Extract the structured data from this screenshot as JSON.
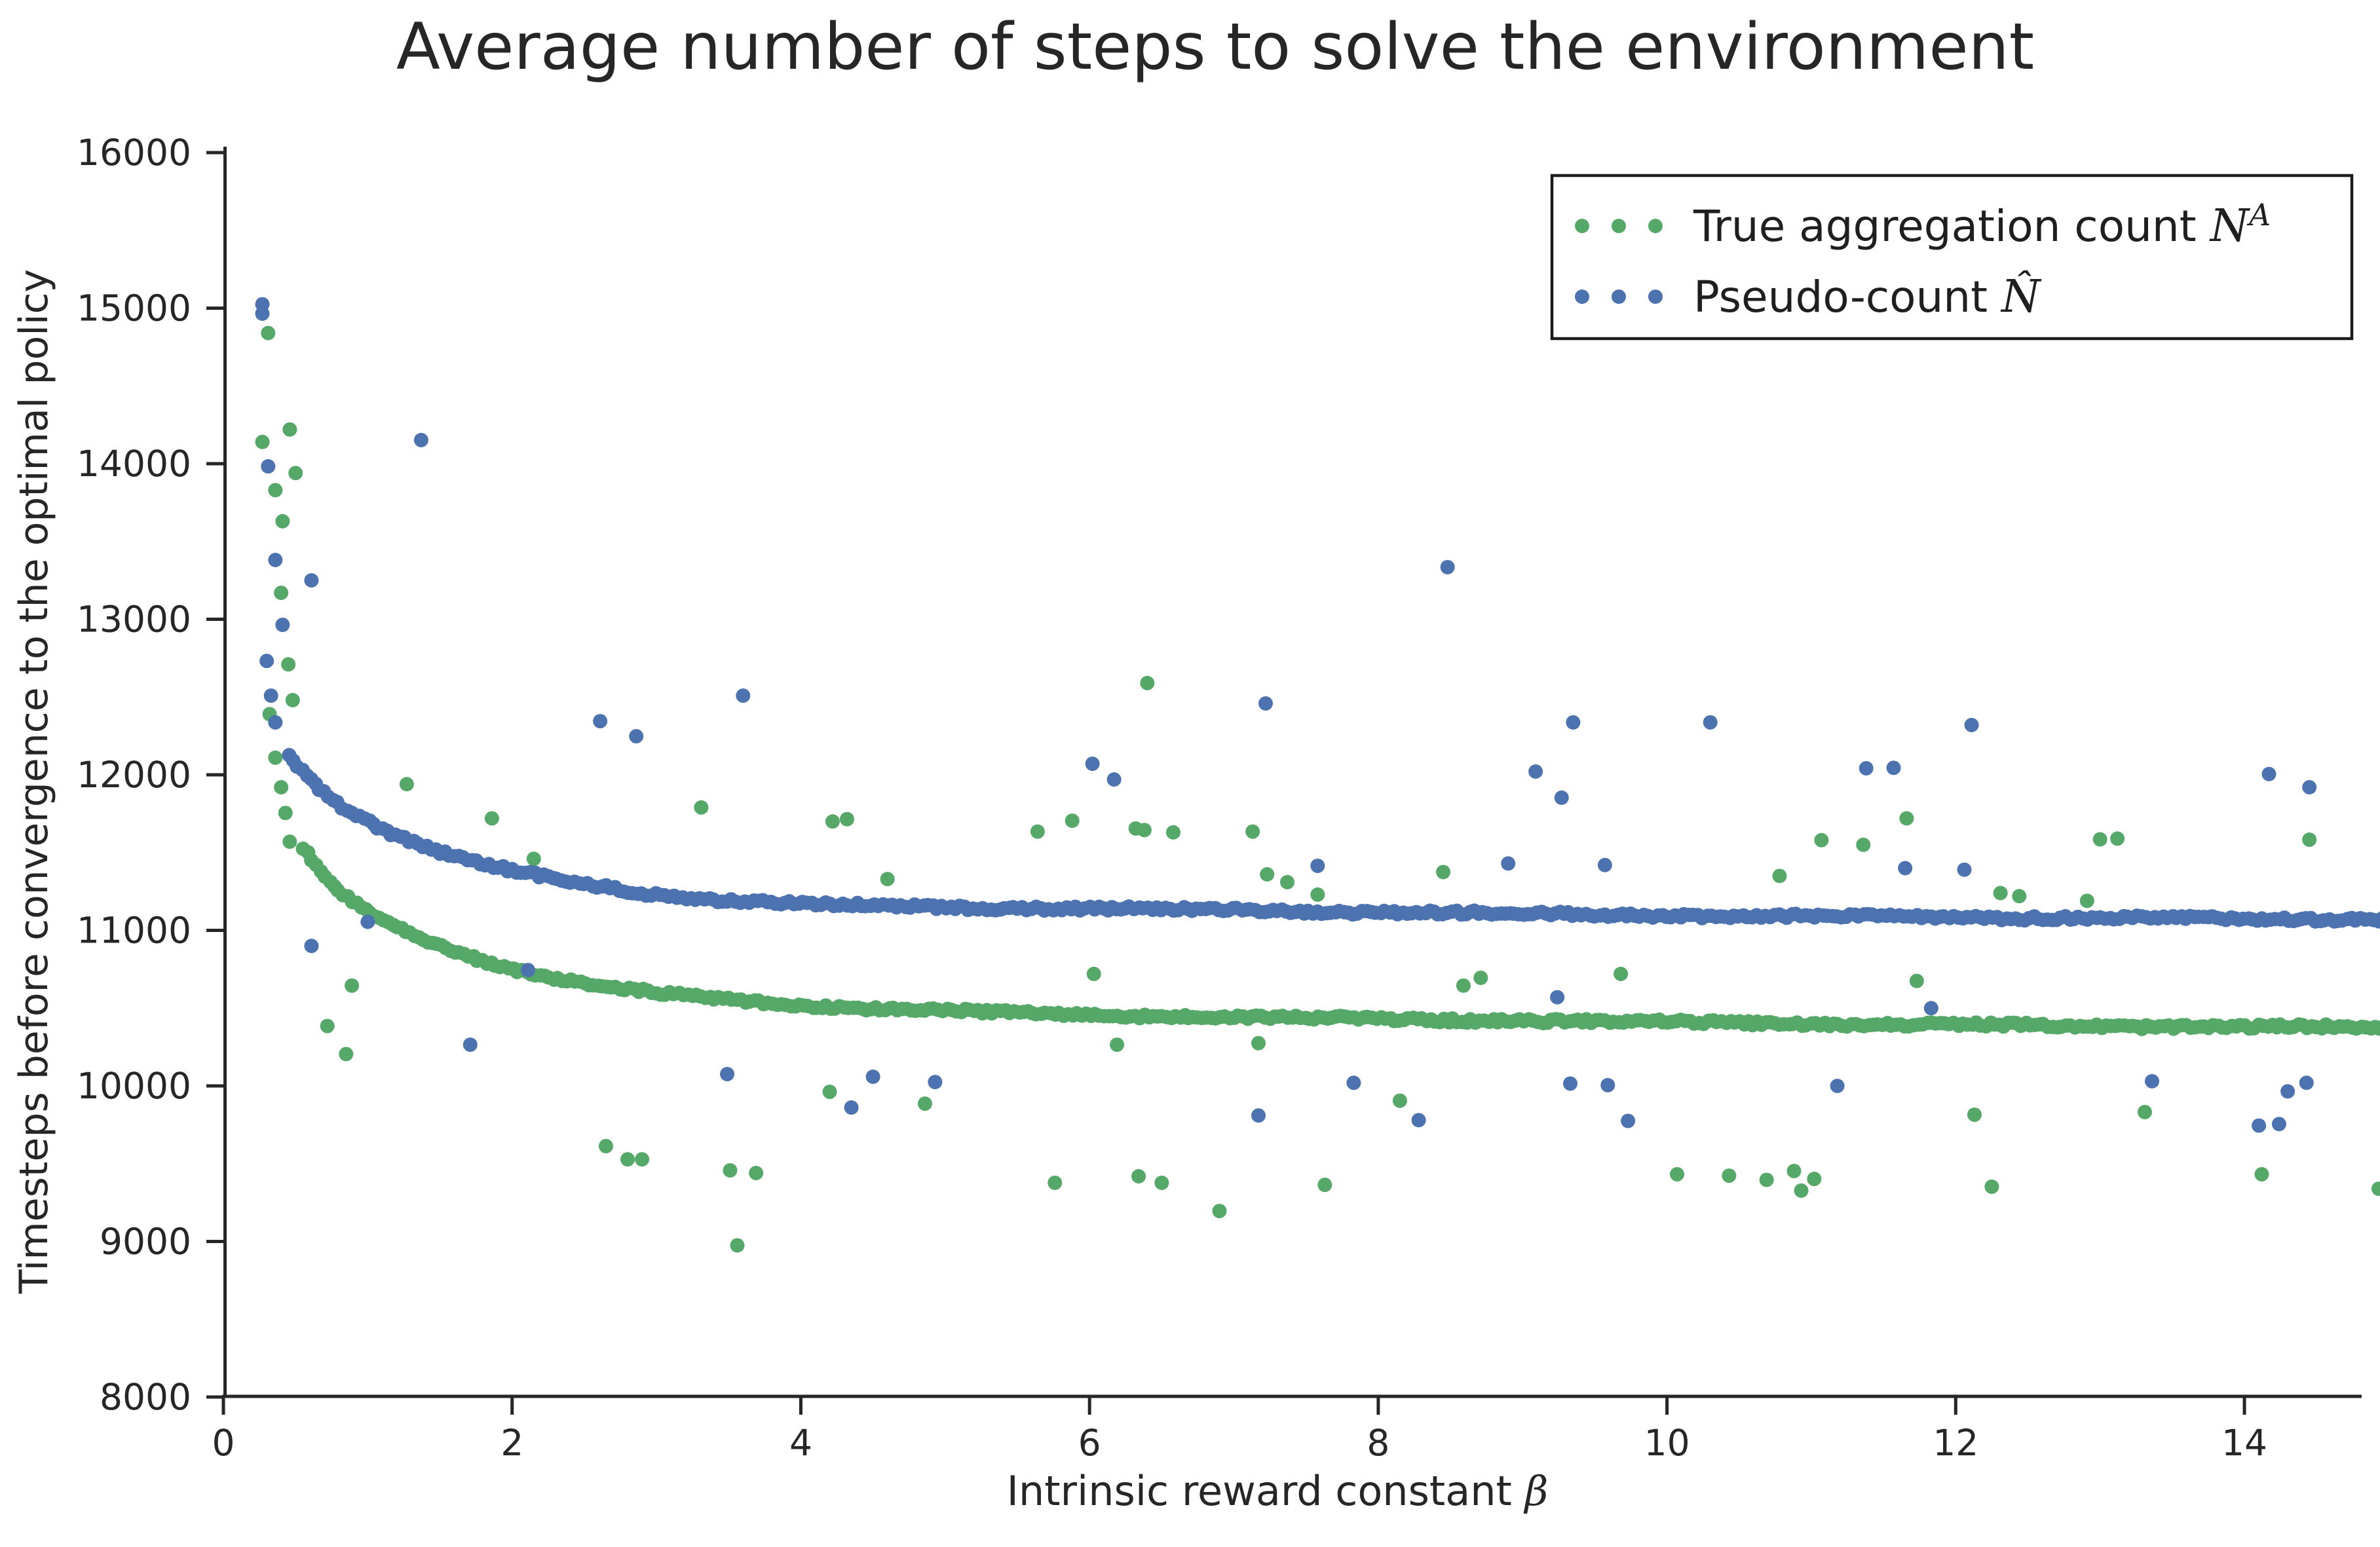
{
  "chart_data": {
    "type": "scatter",
    "title": "Average number of steps to solve the environment",
    "xlabel": "Intrinsic reward constant ",
    "xlabel_symbol": "β",
    "ylabel": "Timesteps before convergence to the optimal policy",
    "xlim": [
      0,
      15.1
    ],
    "ylim": [
      8000,
      16000
    ],
    "grid": false,
    "background": "#ffffff",
    "axis_color": "#262626",
    "text_color": "#262626",
    "x_ticks": {
      "values": [
        0,
        2,
        4,
        6,
        8,
        10,
        12,
        14
      ],
      "labels": [
        "0",
        "2",
        "4",
        "6",
        "8",
        "10",
        "12",
        "14"
      ]
    },
    "y_ticks": {
      "values": [
        8000,
        9000,
        10000,
        11000,
        12000,
        13000,
        14000,
        15000,
        16000
      ],
      "labels": [
        "8000",
        "9000",
        "10000",
        "11000",
        "12000",
        "13000",
        "14000",
        "15000",
        "16000"
      ]
    },
    "legend": {
      "position": "upper right",
      "entries": [
        {
          "series": "true_aggregation_count",
          "label": "True aggregation count ",
          "math": "N",
          "math_sup": "A"
        },
        {
          "series": "pseudo_count",
          "label": "Pseudo-count ",
          "math": "N̂",
          "math_sup": ""
        }
      ]
    },
    "series": [
      {
        "id": "true_aggregation_count",
        "name": "True aggregation count N^A",
        "color": "#55A868",
        "marker": "circle",
        "band_point_spacing": 0.031,
        "band_jitter": 13,
        "band_anchors": [
          [
            0.55,
            11530
          ],
          [
            0.65,
            11400
          ],
          [
            0.8,
            11250
          ],
          [
            1.0,
            11120
          ],
          [
            1.2,
            11030
          ],
          [
            1.5,
            10900
          ],
          [
            1.75,
            10820
          ],
          [
            2.0,
            10750
          ],
          [
            2.25,
            10700
          ],
          [
            2.5,
            10660
          ],
          [
            3.0,
            10595
          ],
          [
            3.5,
            10555
          ],
          [
            4.0,
            10522
          ],
          [
            4.5,
            10498
          ],
          [
            5.0,
            10480
          ],
          [
            6.0,
            10458
          ],
          [
            7.0,
            10442
          ],
          [
            8.0,
            10430
          ],
          [
            9.0,
            10420
          ],
          [
            10.0,
            10410
          ],
          [
            11.0,
            10400
          ],
          [
            12.0,
            10392
          ],
          [
            13.0,
            10385
          ],
          [
            14.0,
            10380
          ],
          [
            15.05,
            10376
          ]
        ],
        "outliers": [
          [
            0.31,
            14840
          ],
          [
            0.46,
            14220
          ],
          [
            0.27,
            14140
          ],
          [
            0.5,
            13940
          ],
          [
            0.36,
            13830
          ],
          [
            0.41,
            13630
          ],
          [
            0.4,
            13170
          ],
          [
            0.45,
            12710
          ],
          [
            0.48,
            12480
          ],
          [
            0.32,
            12390
          ],
          [
            0.36,
            12110
          ],
          [
            0.4,
            11920
          ],
          [
            0.43,
            11755
          ],
          [
            0.46,
            11570
          ],
          [
            0.72,
            10385
          ],
          [
            0.85,
            10205
          ],
          [
            0.89,
            10645
          ],
          [
            1.27,
            11940
          ],
          [
            1.86,
            11720
          ],
          [
            2.15,
            11460
          ],
          [
            3.31,
            11790
          ],
          [
            4.22,
            11700
          ],
          [
            4.32,
            11715
          ],
          [
            4.6,
            11330
          ],
          [
            5.64,
            11635
          ],
          [
            5.88,
            11705
          ],
          [
            6.32,
            11655
          ],
          [
            6.38,
            11645
          ],
          [
            6.58,
            11630
          ],
          [
            7.13,
            11635
          ],
          [
            6.4,
            12590
          ],
          [
            7.23,
            11360
          ],
          [
            7.37,
            11310
          ],
          [
            7.58,
            11230
          ],
          [
            8.45,
            11375
          ],
          [
            8.59,
            10645
          ],
          [
            8.71,
            10695
          ],
          [
            9.68,
            10720
          ],
          [
            6.03,
            10720
          ],
          [
            6.19,
            10265
          ],
          [
            7.17,
            10275
          ],
          [
            10.78,
            11350
          ],
          [
            11.07,
            11580
          ],
          [
            11.36,
            11550
          ],
          [
            11.66,
            11720
          ],
          [
            11.73,
            10675
          ],
          [
            12.31,
            11240
          ],
          [
            12.44,
            11220
          ],
          [
            12.91,
            11190
          ],
          [
            13.0,
            11585
          ],
          [
            13.12,
            11590
          ],
          [
            14.45,
            11583
          ],
          [
            2.65,
            9613
          ],
          [
            2.8,
            9528
          ],
          [
            2.9,
            9528
          ],
          [
            3.51,
            9457
          ],
          [
            3.69,
            9440
          ],
          [
            3.56,
            8975
          ],
          [
            4.2,
            9962
          ],
          [
            4.86,
            9886
          ],
          [
            5.76,
            9377
          ],
          [
            6.34,
            9419
          ],
          [
            6.5,
            9377
          ],
          [
            6.9,
            9196
          ],
          [
            7.63,
            9364
          ],
          [
            8.15,
            9905
          ],
          [
            10.07,
            9432
          ],
          [
            10.43,
            9423
          ],
          [
            10.69,
            9396
          ],
          [
            10.88,
            9453
          ],
          [
            11.02,
            9402
          ],
          [
            10.93,
            9327
          ],
          [
            12.13,
            9815
          ],
          [
            12.25,
            9352
          ],
          [
            13.31,
            9832
          ],
          [
            14.12,
            9432
          ],
          [
            14.93,
            9339
          ]
        ]
      },
      {
        "id": "pseudo_count",
        "name": "Pseudo-count N̂",
        "color": "#4C72B0",
        "marker": "circle",
        "band_point_spacing": 0.031,
        "band_jitter": 13,
        "band_anchors": [
          [
            0.45,
            12130
          ],
          [
            0.55,
            12020
          ],
          [
            0.65,
            11930
          ],
          [
            0.8,
            11810
          ],
          [
            1.0,
            11700
          ],
          [
            1.2,
            11610
          ],
          [
            1.5,
            11500
          ],
          [
            1.75,
            11440
          ],
          [
            2.0,
            11380
          ],
          [
            2.25,
            11340
          ],
          [
            2.5,
            11300
          ],
          [
            3.0,
            11230
          ],
          [
            3.5,
            11190
          ],
          [
            4.0,
            11170
          ],
          [
            4.5,
            11158
          ],
          [
            5.0,
            11150
          ],
          [
            6.0,
            11140
          ],
          [
            7.0,
            11130
          ],
          [
            8.0,
            11118
          ],
          [
            9.0,
            11106
          ],
          [
            10.0,
            11097
          ],
          [
            11.0,
            11090
          ],
          [
            12.0,
            11084
          ],
          [
            13.0,
            11079
          ],
          [
            14.0,
            11075
          ],
          [
            15.05,
            11072
          ]
        ],
        "outliers": [
          [
            0.27,
            15025
          ],
          [
            0.27,
            14965
          ],
          [
            0.31,
            13983
          ],
          [
            0.36,
            13381
          ],
          [
            0.41,
            12964
          ],
          [
            0.61,
            13250
          ],
          [
            0.3,
            12732
          ],
          [
            0.33,
            12509
          ],
          [
            0.36,
            12337
          ],
          [
            1.37,
            14152
          ],
          [
            1.0,
            11055
          ],
          [
            0.61,
            10900
          ],
          [
            1.71,
            10265
          ],
          [
            2.11,
            10745
          ],
          [
            2.61,
            12345
          ],
          [
            2.86,
            12248
          ],
          [
            3.6,
            12509
          ],
          [
            6.02,
            12071
          ],
          [
            6.17,
            11970
          ],
          [
            7.22,
            12459
          ],
          [
            7.58,
            11415
          ],
          [
            8.48,
            13335
          ],
          [
            8.9,
            11430
          ],
          [
            9.09,
            12021
          ],
          [
            9.27,
            11853
          ],
          [
            9.35,
            12337
          ],
          [
            9.57,
            11420
          ],
          [
            10.3,
            12337
          ],
          [
            11.38,
            12042
          ],
          [
            11.57,
            12045
          ],
          [
            11.65,
            11400
          ],
          [
            12.06,
            11390
          ],
          [
            12.11,
            12320
          ],
          [
            14.17,
            12005
          ],
          [
            14.45,
            11920
          ],
          [
            3.49,
            10076
          ],
          [
            4.35,
            9861
          ],
          [
            4.5,
            10059
          ],
          [
            4.93,
            10025
          ],
          [
            7.17,
            9810
          ],
          [
            7.83,
            10020
          ],
          [
            8.28,
            9780
          ],
          [
            9.24,
            10570
          ],
          [
            9.33,
            10015
          ],
          [
            9.59,
            10005
          ],
          [
            9.73,
            9775
          ],
          [
            11.18,
            10000
          ],
          [
            11.83,
            10500
          ],
          [
            13.36,
            10030
          ],
          [
            14.1,
            9745
          ],
          [
            14.24,
            9755
          ],
          [
            14.3,
            9965
          ],
          [
            14.43,
            10020
          ]
        ]
      }
    ]
  }
}
